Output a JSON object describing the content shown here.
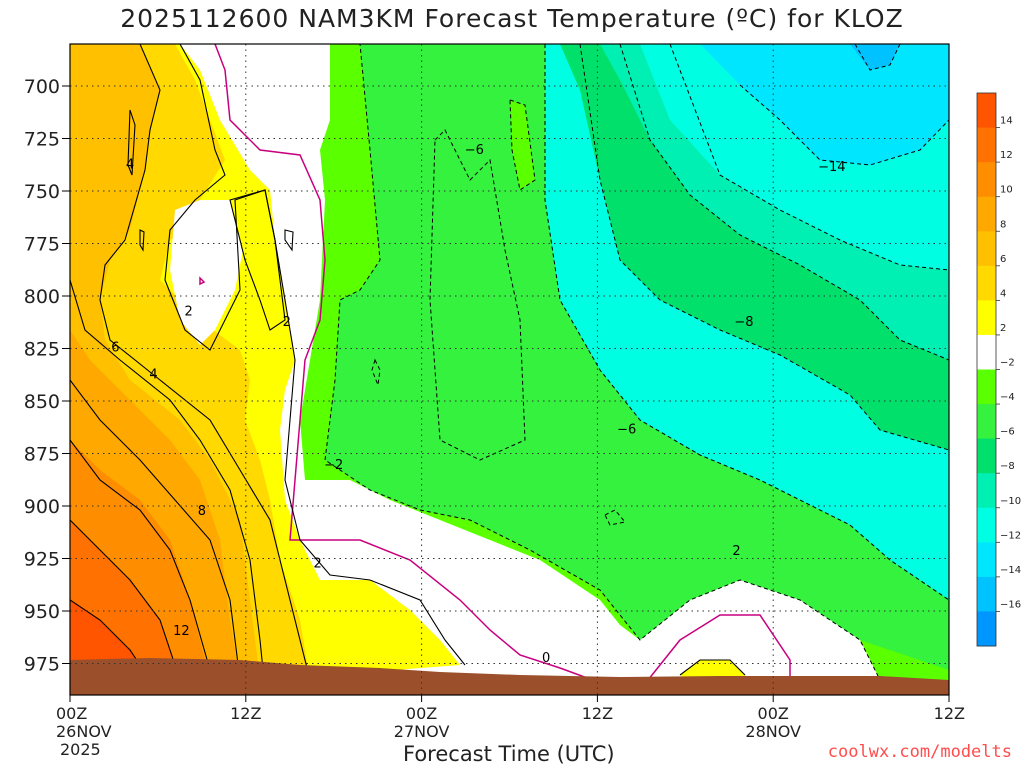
{
  "title": "2025112600 NAM3KM Forecast Temperature (ºC) for KLOZ",
  "credit": "coolwx.com/modelts",
  "chart_data": {
    "type": "contour",
    "title": "2025112600 NAM3KM Forecast Temperature (ºC) for KLOZ",
    "model": "NAM3KM",
    "station": "KLOZ",
    "run": "2025112600",
    "variable": "Temperature (ºC)",
    "xlabel": "Forecast Time (UTC)",
    "ylabel": "",
    "x_range_hours": [
      0,
      60
    ],
    "x_ticks": [
      {
        "hour": 0,
        "label": "00Z",
        "date": "26NOV",
        "year": "2025"
      },
      {
        "hour": 12,
        "label": "12Z",
        "date": "",
        "year": ""
      },
      {
        "hour": 24,
        "label": "00Z",
        "date": "27NOV",
        "year": ""
      },
      {
        "hour": 36,
        "label": "12Z",
        "date": "",
        "year": ""
      },
      {
        "hour": 48,
        "label": "00Z",
        "date": "28NOV",
        "year": ""
      },
      {
        "hour": 60,
        "label": "12Z",
        "date": "",
        "year": ""
      }
    ],
    "y_range_hpa": [
      990,
      680
    ],
    "y_ticks": [
      700,
      725,
      750,
      775,
      800,
      825,
      850,
      875,
      900,
      925,
      950,
      975
    ],
    "grid": true,
    "colorbar": {
      "placement": "right",
      "levels": [
        14,
        12,
        10,
        8,
        6,
        4,
        2,
        -2,
        -4,
        -6,
        -8,
        -10,
        -12,
        -14,
        -16
      ],
      "colors": [
        "#ff5400",
        "#ff7100",
        "#ff8d00",
        "#ffa800",
        "#ffc000",
        "#ffd900",
        "#ffff00",
        "#ffffff",
        "#5aff00",
        "#34f23e",
        "#00e06a",
        "#00f0b4",
        "#00ffe2",
        "#00e6ff",
        "#00c2ff",
        "#0096ff"
      ]
    },
    "contour_labels": [
      {
        "hour": 4.1,
        "p": 737,
        "text": "4"
      },
      {
        "hour": 8.1,
        "p": 807,
        "text": "2"
      },
      {
        "hour": 3.1,
        "p": 824,
        "text": "6"
      },
      {
        "hour": 5.7,
        "p": 837,
        "text": "4"
      },
      {
        "hour": 9.0,
        "p": 902,
        "text": "8"
      },
      {
        "hour": 7.6,
        "p": 959,
        "text": "12"
      },
      {
        "hour": 14.8,
        "p": 812,
        "text": "2"
      },
      {
        "hour": 18.0,
        "p": 880,
        "text": "−2"
      },
      {
        "hour": 16.9,
        "p": 927,
        "text": "2"
      },
      {
        "hour": 27.6,
        "p": 730,
        "text": "−6"
      },
      {
        "hour": 52.0,
        "p": 738,
        "text": "−14"
      },
      {
        "hour": 46.0,
        "p": 812,
        "text": "−8"
      },
      {
        "hour": 38.0,
        "p": 863,
        "text": "−6"
      },
      {
        "hour": 45.5,
        "p": 921,
        "text": "2"
      },
      {
        "hour": 32.5,
        "p": 972,
        "text": "0"
      }
    ]
  }
}
